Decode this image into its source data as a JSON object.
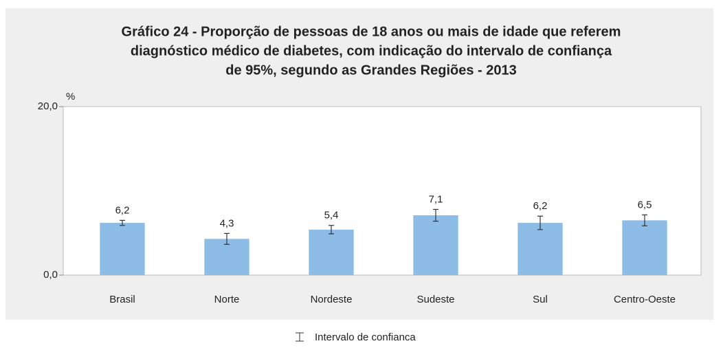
{
  "chart_data": {
    "type": "bar",
    "title": [
      "Gráfico 24 - Proporção de pessoas de 18 anos ou mais de idade que referem",
      "diagnóstico médico de diabetes, com indicação do intervalo de confiança",
      "de 95%, segundo as Grandes Regiões - 2013"
    ],
    "y_axis_label": "%",
    "categories": [
      "Brasil",
      "Norte",
      "Nordeste",
      "Sudeste",
      "Sul",
      "Centro-Oeste"
    ],
    "values": [
      6.2,
      4.3,
      5.4,
      7.1,
      6.2,
      6.5
    ],
    "value_labels": [
      "6,2",
      "4,3",
      "5,4",
      "7,1",
      "6,2",
      "6,5"
    ],
    "errors": [
      0.3,
      0.65,
      0.5,
      0.7,
      0.8,
      0.65
    ],
    "color": "#8dbde6",
    "ylim": [
      0,
      20
    ],
    "yticks": [
      {
        "value": 0,
        "label": "0,0"
      },
      {
        "value": 20,
        "label": "20,0"
      }
    ],
    "grid": false,
    "legend": "Intervalo de confianca",
    "legend_position": "bottom"
  }
}
